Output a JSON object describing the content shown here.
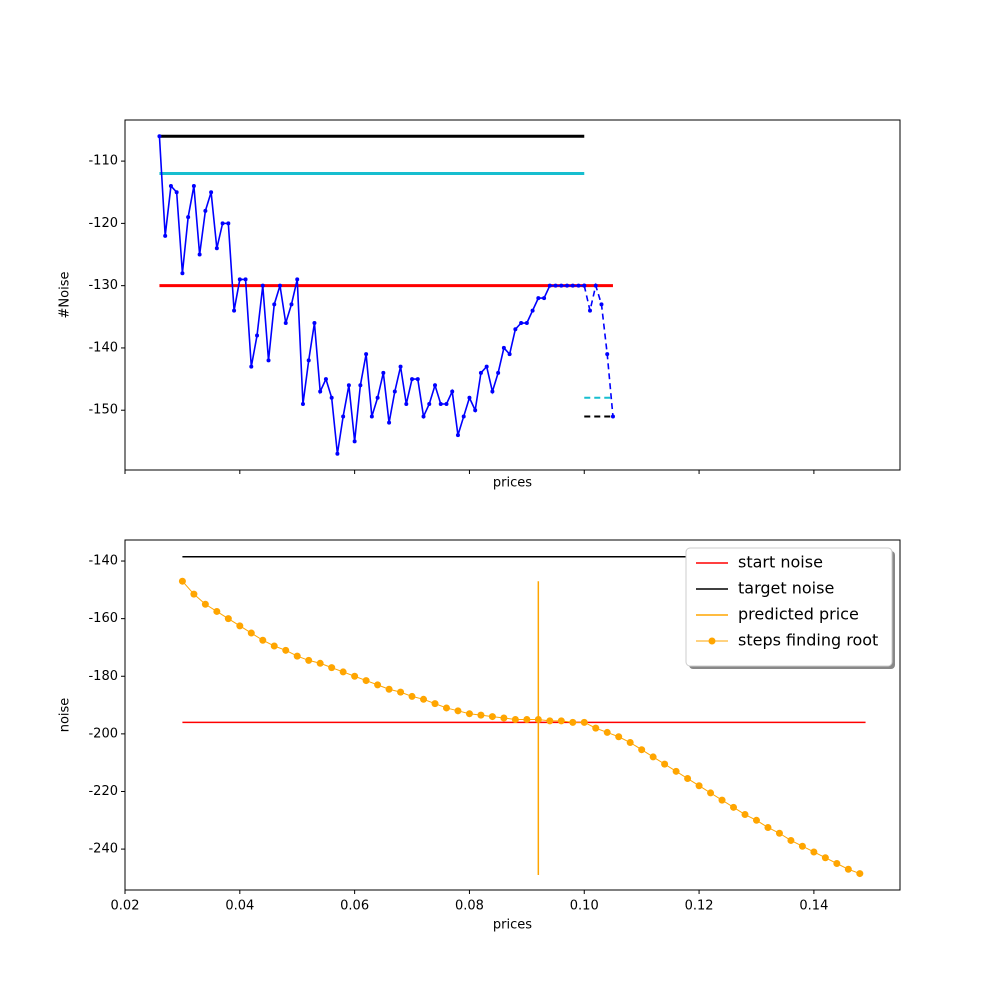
{
  "chart_data": [
    {
      "type": "line",
      "xlabel": "prices",
      "ylabel": "#Noise",
      "xlim": [
        0.02,
        0.155
      ],
      "ylim": [
        -159.6,
        -103.4
      ],
      "xticks": [
        0.02,
        0.04,
        0.06,
        0.08,
        0.1,
        0.12,
        0.14
      ],
      "yticks": [
        -110,
        -120,
        -130,
        -140,
        -150
      ],
      "series": [
        {
          "color": "#000000",
          "width": 3,
          "x": [
            0.026,
            0.1
          ],
          "values": [
            -106,
            -106
          ]
        },
        {
          "color": "#17becf",
          "width": 3,
          "x": [
            0.026,
            0.1
          ],
          "values": [
            -112,
            -112
          ]
        },
        {
          "color": "#ff0000",
          "width": 3,
          "x": [
            0.026,
            0.105
          ],
          "values": [
            -130,
            -130
          ]
        },
        {
          "color": "#0000ff",
          "width": 1.6,
          "marker": true,
          "x": [
            0.026,
            0.027,
            0.028,
            0.029,
            0.03,
            0.031,
            0.032,
            0.033,
            0.034,
            0.035,
            0.036,
            0.037,
            0.038,
            0.039,
            0.04,
            0.041,
            0.042,
            0.043,
            0.044,
            0.045,
            0.046,
            0.047,
            0.048,
            0.049,
            0.05,
            0.051,
            0.052,
            0.053,
            0.054,
            0.055,
            0.056,
            0.057,
            0.058,
            0.059,
            0.06,
            0.061,
            0.062,
            0.063,
            0.064,
            0.065,
            0.066,
            0.067,
            0.068,
            0.069,
            0.07,
            0.071,
            0.072,
            0.073,
            0.074,
            0.075,
            0.076,
            0.077,
            0.078,
            0.079,
            0.08,
            0.081,
            0.082,
            0.083,
            0.084,
            0.085,
            0.086,
            0.087,
            0.088,
            0.089,
            0.09,
            0.091,
            0.092,
            0.093,
            0.094,
            0.095,
            0.096,
            0.097,
            0.098,
            0.099,
            0.1
          ],
          "values": [
            -106,
            -122,
            -114,
            -115,
            -128,
            -119,
            -114,
            -125,
            -118,
            -115,
            -124,
            -120,
            -120,
            -134,
            -129,
            -129,
            -143,
            -138,
            -130,
            -142,
            -133,
            -130,
            -136,
            -133,
            -129,
            -149,
            -142,
            -136,
            -147,
            -145,
            -148,
            -157,
            -151,
            -146,
            -155,
            -146,
            -141,
            -151,
            -148,
            -144,
            -152,
            -147,
            -143,
            -149,
            -145,
            -145,
            -151,
            -149,
            -146,
            -149,
            -149,
            -147,
            -154,
            -151,
            -148,
            -150,
            -144,
            -143,
            -147,
            -144,
            -140,
            -141,
            -137,
            -136,
            -136,
            -134,
            -132,
            -132,
            -130,
            -130,
            -130,
            -130,
            -130,
            -130,
            -130
          ]
        },
        {
          "color": "#0000ff",
          "width": 1.6,
          "marker": true,
          "dashed": true,
          "x": [
            0.1,
            0.101,
            0.102,
            0.103,
            0.104,
            0.105
          ],
          "values": [
            -130,
            -134,
            -130,
            -133,
            -141,
            -151
          ]
        },
        {
          "color": "#17becf",
          "width": 2,
          "dashed": true,
          "x": [
            0.1,
            0.105
          ],
          "values": [
            -148,
            -148
          ]
        },
        {
          "color": "#000000",
          "width": 2,
          "dashed": true,
          "x": [
            0.1,
            0.105
          ],
          "values": [
            -151,
            -151
          ]
        }
      ]
    },
    {
      "type": "line",
      "xlabel": "prices",
      "ylabel": "noise",
      "xlim": [
        0.02,
        0.155
      ],
      "ylim": [
        -254.2,
        -132.7
      ],
      "xticks": [
        0.02,
        0.04,
        0.06,
        0.08,
        {
          "value": 0.1,
          "label": "0.10"
        },
        0.12,
        0.14
      ],
      "yticks": [
        -140,
        -160,
        -180,
        -200,
        -220,
        -240
      ],
      "legend": "upper right",
      "series": [
        {
          "name": "start noise",
          "color": "#ff0000",
          "width": 1.5,
          "x": [
            0.03,
            0.149
          ],
          "values": [
            -196,
            -196
          ]
        },
        {
          "name": "target noise",
          "color": "#000000",
          "width": 1.5,
          "x": [
            0.03,
            0.149
          ],
          "values": [
            -138.5,
            -138.5
          ]
        },
        {
          "name": "predicted price",
          "color": "#ffa500",
          "width": 1.5,
          "x": [
            0.092,
            0.092
          ],
          "values": [
            -147,
            -249
          ]
        },
        {
          "name": "steps finding root",
          "color": "#ffa500",
          "width": 1,
          "marker": true,
          "x": [
            0.03,
            0.032,
            0.034,
            0.036,
            0.038,
            0.04,
            0.042,
            0.044,
            0.046,
            0.048,
            0.05,
            0.052,
            0.054,
            0.056,
            0.058,
            0.06,
            0.062,
            0.064,
            0.066,
            0.068,
            0.07,
            0.072,
            0.074,
            0.076,
            0.078,
            0.08,
            0.082,
            0.084,
            0.086,
            0.088,
            0.09,
            0.092,
            0.094,
            0.096,
            0.098,
            0.1,
            0.102,
            0.104,
            0.106,
            0.108,
            0.11,
            0.112,
            0.114,
            0.116,
            0.118,
            0.12,
            0.122,
            0.124,
            0.126,
            0.128,
            0.13,
            0.132,
            0.134,
            0.136,
            0.138,
            0.14,
            0.142,
            0.144,
            0.146,
            0.148
          ],
          "values": [
            -147,
            -151.5,
            -155,
            -157.5,
            -160,
            -162.5,
            -165,
            -167.5,
            -169.5,
            -171,
            -173,
            -174.5,
            -175.5,
            -177,
            -178.5,
            -180,
            -181.5,
            -183,
            -184.5,
            -185.5,
            -187,
            -188,
            -189.5,
            -191,
            -192,
            -193,
            -193.5,
            -194,
            -194.5,
            -195,
            -195,
            -195,
            -195.5,
            -195.5,
            -196,
            -196,
            -198,
            -199.5,
            -201,
            -203,
            -205.5,
            -208,
            -210.5,
            -213,
            -215.5,
            -218,
            -220.5,
            -223,
            -225.5,
            -228,
            -230,
            -232.5,
            -234.5,
            -237,
            -239,
            -241,
            -243,
            -245,
            -247,
            -248.5
          ]
        }
      ]
    }
  ]
}
